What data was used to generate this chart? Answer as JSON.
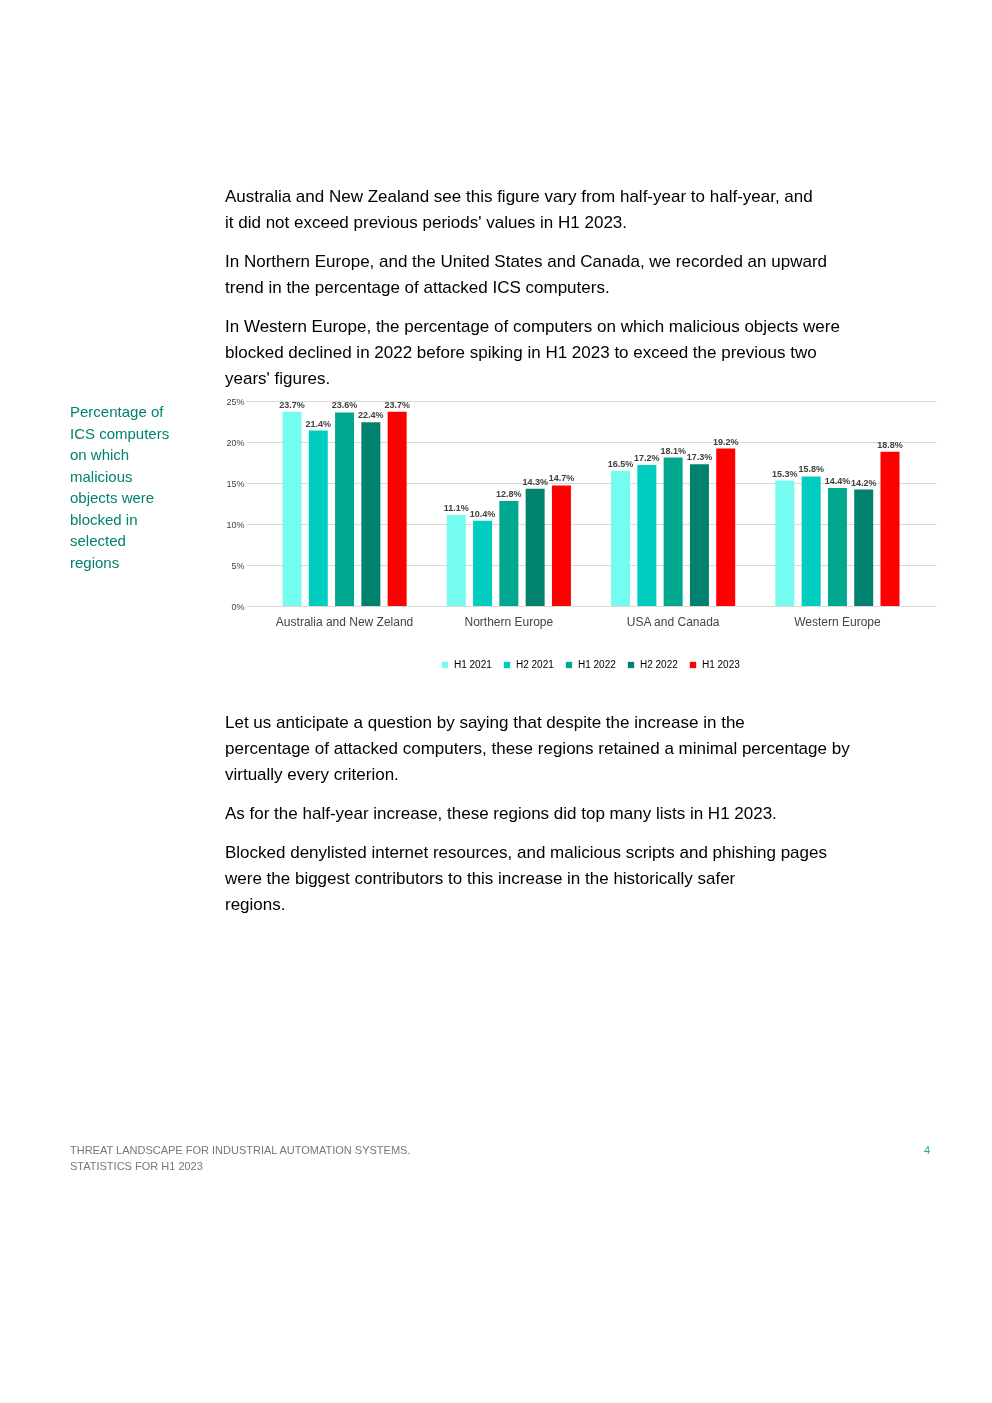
{
  "chart_data": {
    "type": "bar",
    "title": "Percentage of ICS computers on which malicious objects were blocked in selected regions",
    "categories": [
      "Australia and New Zeland",
      "Northern Europe",
      "USA and Canada",
      "Western Europe"
    ],
    "series": [
      {
        "name": "H1 2021",
        "color": "#75fbf0",
        "values": [
          23.7,
          11.1,
          16.5,
          15.3
        ]
      },
      {
        "name": "H2 2021",
        "color": "#00ccbf",
        "values": [
          21.4,
          10.4,
          17.2,
          15.8
        ]
      },
      {
        "name": "H1 2022",
        "color": "#00a88f",
        "values": [
          23.6,
          12.8,
          18.1,
          14.4
        ]
      },
      {
        "name": "H2 2022",
        "color": "#00826e",
        "values": [
          22.4,
          14.3,
          17.3,
          14.2
        ]
      },
      {
        "name": "H1 2023",
        "color": "#ff0000",
        "values": [
          23.7,
          14.7,
          19.2,
          18.8
        ]
      }
    ],
    "ylim": [
      0,
      25
    ],
    "yticks": [
      {
        "value": 0,
        "label": "0%"
      },
      {
        "value": 5,
        "label": "5%"
      },
      {
        "value": 10,
        "label": "10%"
      },
      {
        "value": 15,
        "label": "15%"
      },
      {
        "value": 20,
        "label": "20%"
      },
      {
        "value": 25,
        "label": "25%"
      }
    ],
    "value_labels": [
      [
        "23.7%",
        "11.1%",
        "16.5%",
        "15.3%"
      ],
      [
        "21.4%",
        "10.4%",
        "17.2%",
        "15.8%"
      ],
      [
        "23.6%",
        "12.8%",
        "18.1%",
        "14.4%"
      ],
      [
        "22.4%",
        "14.3%",
        "17.3%",
        "14.2%"
      ],
      [
        "23.7%",
        "14.7%",
        "19.2%",
        "18.8%"
      ]
    ],
    "grid": "y",
    "legend": "bottom",
    "annotations": [
      "Australia and New Zealand see this figure vary from half-year to half-year, and it did not exceed previous periods' values in H1 2023.",
      "In Northern Europe, and the United States and Canada, we recorded an upward trend in the percentage of attacked ICS computers.",
      "In Western Europe, the percentage of computers on which malicious objects were blocked declined in 2022 before spiking in H1 2023 to exceed the previous two years' figures.",
      "Let us anticipate a question by saying that despite the increase in the percentage of attacked computers, these regions retained a minimal percentage by virtually every criterion.",
      "As for the half-year increase, these regions did top many lists in H1 2023.",
      "Blocked denylisted internet resources, and malicious scripts and phishing pages were the biggest contributors to this increase in the historically safer regions.",
      "THREAT LANDSCAPE FOR INDUSTRIAL AUTOMATION SYSTEMS.",
      "STATISTICS FOR H1 2023",
      "4"
    ]
  }
}
